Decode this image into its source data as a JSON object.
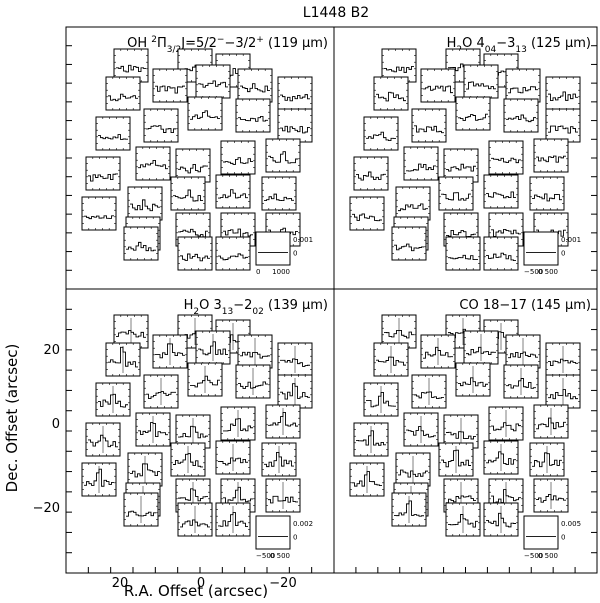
{
  "figure": {
    "title": "L1448 B2",
    "xlabel": "R.A. Offset (arcsec)",
    "ylabel": "Dec. Offset (arcsec)"
  },
  "chart_data": [
    {
      "type": "line",
      "panel": "top-left",
      "title_parts": [
        "OH ",
        "2",
        "Π",
        "3/2",
        "J=5/2",
        "−",
        "−3/2",
        "+",
        " (119 μm)"
      ],
      "scale_labels": {
        "y_top": "0.001",
        "y_zero": "0",
        "x_left": "0",
        "x_right": "1000"
      },
      "xlim": [
        30,
        -30
      ],
      "ylim": [
        -25,
        25
      ],
      "seed": 11,
      "peak_strength": 0.25
    },
    {
      "type": "line",
      "panel": "top-right",
      "title_parts": [
        "H",
        "2",
        "O 4",
        "04",
        "−3",
        "13",
        " (125 μm)"
      ],
      "scale_labels": {
        "y_top": "0.001",
        "y_zero": "0",
        "x_left": "−500",
        "x_right": "0 500"
      },
      "xlim": [
        30,
        -30
      ],
      "ylim": [
        -25,
        25
      ],
      "seed": 23,
      "peak_strength": 0.15
    },
    {
      "type": "line",
      "panel": "bottom-left",
      "title_parts": [
        "H",
        "2",
        "O 3",
        "13",
        "−2",
        "02",
        " (139 μm)"
      ],
      "scale_labels": {
        "y_top": "0.002",
        "y_zero": "0",
        "x_left": "−500",
        "x_right": "0 500"
      },
      "xlim": [
        30,
        -30
      ],
      "ylim": [
        -25,
        25
      ],
      "xticks": [
        "20",
        "0",
        "−20"
      ],
      "yticks": [
        "20",
        "0",
        "−20"
      ],
      "seed": 37,
      "peak_strength": 0.75
    },
    {
      "type": "line",
      "panel": "bottom-right",
      "title_parts": [
        "CO 18−17 (145 μm)"
      ],
      "scale_labels": {
        "y_top": "0.005",
        "y_zero": "0",
        "x_left": "−500",
        "x_right": "0 500"
      },
      "xlim": [
        30,
        -30
      ],
      "ylim": [
        -25,
        25
      ],
      "seed": 53,
      "peak_strength": 0.6
    }
  ]
}
